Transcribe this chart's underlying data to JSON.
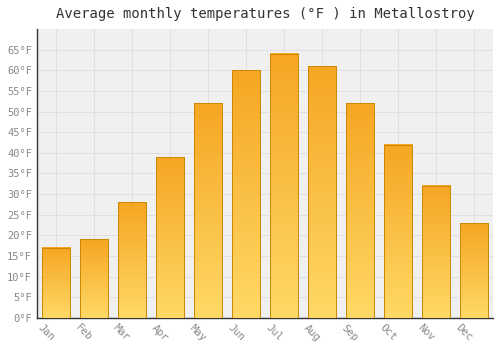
{
  "title": "Average monthly temperatures (°F ) in Metallostroy",
  "months": [
    "Jan",
    "Feb",
    "Mar",
    "Apr",
    "May",
    "Jun",
    "Jul",
    "Aug",
    "Sep",
    "Oct",
    "Nov",
    "Dec"
  ],
  "values": [
    17,
    19,
    28,
    39,
    52,
    60,
    64,
    61,
    52,
    42,
    32,
    23
  ],
  "bar_color_bottom": "#F5A623",
  "bar_color_top": "#FFD966",
  "bar_edge_color": "#CC8800",
  "background_color": "#FFFFFF",
  "plot_bg_color": "#F0F0F0",
  "grid_color": "#DDDDDD",
  "ylim": [
    0,
    70
  ],
  "yticks": [
    0,
    5,
    10,
    15,
    20,
    25,
    30,
    35,
    40,
    45,
    50,
    55,
    60,
    65
  ],
  "title_fontsize": 10,
  "tick_fontsize": 7.5,
  "tick_font": "monospace",
  "xlabel_rotation": -45
}
